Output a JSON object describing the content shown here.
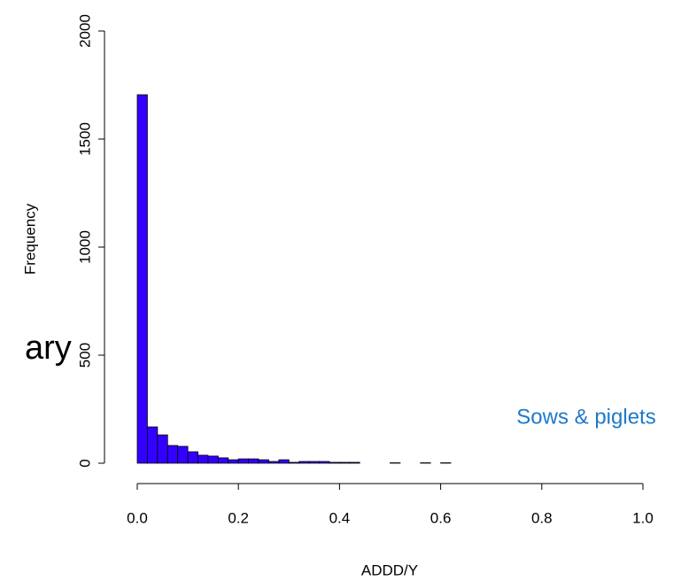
{
  "chart_data": {
    "type": "histogram",
    "background_text": "ary",
    "annotation": "Sows & piglets",
    "annotation_color": "#1f78c8",
    "xlabel": "ADDD/Y",
    "ylabel": "Frequency",
    "color": "#3300ff",
    "bins": [
      0,
      0.02,
      0.04,
      0.06,
      0.08,
      0.1,
      0.12,
      0.14,
      0.16,
      0.18,
      0.2,
      0.22,
      0.24,
      0.26,
      0.28,
      0.3,
      0.32,
      0.34,
      0.36,
      0.38,
      0.4,
      0.42,
      0.44,
      0.46,
      0.48,
      0.5,
      0.52,
      0.54,
      0.56,
      0.58,
      0.6,
      0.62,
      0.64,
      0.66,
      0.68,
      0.7,
      0.72,
      0.74,
      0.76,
      0.78,
      0.8,
      0.82,
      0.84,
      0.86,
      0.88,
      0.9,
      0.92,
      0.94,
      0.96
    ],
    "counts": [
      1705,
      168,
      131,
      82,
      78,
      53,
      37,
      33,
      25,
      16,
      20,
      20,
      16,
      8,
      16,
      4,
      8,
      8,
      8,
      4,
      4,
      4,
      0,
      0,
      0,
      2,
      0,
      0,
      2,
      0,
      2,
      0,
      0,
      0,
      0,
      0,
      0,
      0,
      0,
      0,
      0,
      0,
      0,
      0,
      0,
      0,
      0,
      0
    ],
    "xlim": [
      0,
      1
    ],
    "xticks": [
      {
        "value": 0,
        "label": "0.0"
      },
      0.2,
      0.4,
      0.6,
      0.8,
      {
        "value": 1,
        "label": "1.0"
      }
    ],
    "ylim": [
      0,
      2000
    ],
    "yticks": [
      0,
      500,
      1000,
      1500,
      2000
    ]
  }
}
